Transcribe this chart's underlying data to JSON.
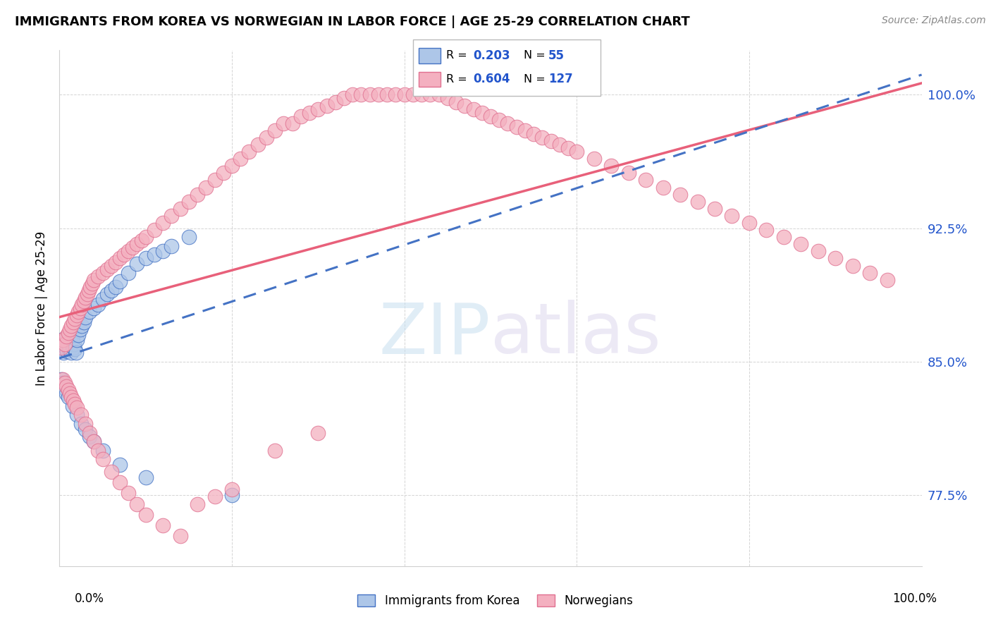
{
  "title": "IMMIGRANTS FROM KOREA VS NORWEGIAN IN LABOR FORCE | AGE 25-29 CORRELATION CHART",
  "source": "Source: ZipAtlas.com",
  "ylabel": "In Labor Force | Age 25-29",
  "legend_labels": [
    "Immigrants from Korea",
    "Norwegians"
  ],
  "r_korea": 0.203,
  "n_korea": 55,
  "r_norway": 0.604,
  "n_norway": 127,
  "color_korea_fill": "#adc6e8",
  "color_korea_edge": "#4472c4",
  "color_norway_fill": "#f4b0c0",
  "color_norway_edge": "#e07090",
  "color_korea_line": "#4472c4",
  "color_norway_line": "#e8607a",
  "color_r_text": "#2255cc",
  "xmin": 0.0,
  "xmax": 1.0,
  "ymin": 0.735,
  "ymax": 1.025,
  "yticks": [
    0.775,
    0.85,
    0.925,
    1.0
  ],
  "ytick_labels": [
    "77.5%",
    "85.0%",
    "92.5%",
    "100.0%"
  ],
  "grid_color": "#d0d0d0",
  "korea_x": [
    0.001,
    0.002,
    0.003,
    0.004,
    0.005,
    0.006,
    0.007,
    0.008,
    0.009,
    0.01,
    0.011,
    0.012,
    0.013,
    0.014,
    0.015,
    0.016,
    0.017,
    0.018,
    0.019,
    0.02,
    0.022,
    0.024,
    0.026,
    0.028,
    0.03,
    0.035,
    0.04,
    0.045,
    0.05,
    0.055,
    0.06,
    0.065,
    0.07,
    0.08,
    0.09,
    0.1,
    0.11,
    0.12,
    0.13,
    0.15,
    0.002,
    0.004,
    0.006,
    0.008,
    0.01,
    0.015,
    0.02,
    0.025,
    0.03,
    0.035,
    0.04,
    0.05,
    0.07,
    0.1,
    0.2
  ],
  "korea_y": [
    0.857,
    0.862,
    0.858,
    0.86,
    0.855,
    0.863,
    0.858,
    0.861,
    0.856,
    0.86,
    0.857,
    0.858,
    0.861,
    0.855,
    0.862,
    0.858,
    0.86,
    0.857,
    0.855,
    0.862,
    0.865,
    0.868,
    0.87,
    0.872,
    0.875,
    0.878,
    0.88,
    0.882,
    0.885,
    0.888,
    0.89,
    0.892,
    0.895,
    0.9,
    0.905,
    0.908,
    0.91,
    0.912,
    0.915,
    0.92,
    0.84,
    0.838,
    0.835,
    0.832,
    0.83,
    0.825,
    0.82,
    0.815,
    0.812,
    0.808,
    0.805,
    0.8,
    0.792,
    0.785,
    0.775
  ],
  "norway_x": [
    0.002,
    0.004,
    0.006,
    0.008,
    0.01,
    0.012,
    0.014,
    0.016,
    0.018,
    0.02,
    0.022,
    0.024,
    0.026,
    0.028,
    0.03,
    0.032,
    0.034,
    0.036,
    0.038,
    0.04,
    0.045,
    0.05,
    0.055,
    0.06,
    0.065,
    0.07,
    0.075,
    0.08,
    0.085,
    0.09,
    0.095,
    0.1,
    0.11,
    0.12,
    0.13,
    0.14,
    0.15,
    0.16,
    0.17,
    0.18,
    0.19,
    0.2,
    0.21,
    0.22,
    0.23,
    0.24,
    0.25,
    0.26,
    0.27,
    0.28,
    0.29,
    0.3,
    0.31,
    0.32,
    0.33,
    0.34,
    0.35,
    0.36,
    0.37,
    0.38,
    0.39,
    0.4,
    0.41,
    0.42,
    0.43,
    0.44,
    0.45,
    0.46,
    0.47,
    0.48,
    0.49,
    0.5,
    0.51,
    0.52,
    0.53,
    0.54,
    0.55,
    0.56,
    0.57,
    0.58,
    0.59,
    0.6,
    0.62,
    0.64,
    0.66,
    0.68,
    0.7,
    0.72,
    0.74,
    0.76,
    0.78,
    0.8,
    0.82,
    0.84,
    0.86,
    0.88,
    0.9,
    0.92,
    0.94,
    0.96,
    0.004,
    0.006,
    0.008,
    0.01,
    0.012,
    0.014,
    0.016,
    0.018,
    0.02,
    0.025,
    0.03,
    0.035,
    0.04,
    0.045,
    0.05,
    0.06,
    0.07,
    0.08,
    0.09,
    0.1,
    0.12,
    0.14,
    0.16,
    0.18,
    0.2,
    0.25,
    0.3
  ],
  "norway_y": [
    0.858,
    0.862,
    0.86,
    0.864,
    0.866,
    0.868,
    0.87,
    0.872,
    0.874,
    0.876,
    0.878,
    0.88,
    0.882,
    0.884,
    0.886,
    0.888,
    0.89,
    0.892,
    0.894,
    0.896,
    0.898,
    0.9,
    0.902,
    0.904,
    0.906,
    0.908,
    0.91,
    0.912,
    0.914,
    0.916,
    0.918,
    0.92,
    0.924,
    0.928,
    0.932,
    0.936,
    0.94,
    0.944,
    0.948,
    0.952,
    0.956,
    0.96,
    0.964,
    0.968,
    0.972,
    0.976,
    0.98,
    0.984,
    0.984,
    0.988,
    0.99,
    0.992,
    0.994,
    0.996,
    0.998,
    1.0,
    1.0,
    1.0,
    1.0,
    1.0,
    1.0,
    1.0,
    1.0,
    1.0,
    1.0,
    1.0,
    0.998,
    0.996,
    0.994,
    0.992,
    0.99,
    0.988,
    0.986,
    0.984,
    0.982,
    0.98,
    0.978,
    0.976,
    0.974,
    0.972,
    0.97,
    0.968,
    0.964,
    0.96,
    0.956,
    0.952,
    0.948,
    0.944,
    0.94,
    0.936,
    0.932,
    0.928,
    0.924,
    0.92,
    0.916,
    0.912,
    0.908,
    0.904,
    0.9,
    0.896,
    0.84,
    0.838,
    0.836,
    0.834,
    0.832,
    0.83,
    0.828,
    0.826,
    0.824,
    0.82,
    0.815,
    0.81,
    0.805,
    0.8,
    0.795,
    0.788,
    0.782,
    0.776,
    0.77,
    0.764,
    0.758,
    0.752,
    0.77,
    0.774,
    0.778,
    0.8,
    0.81
  ]
}
